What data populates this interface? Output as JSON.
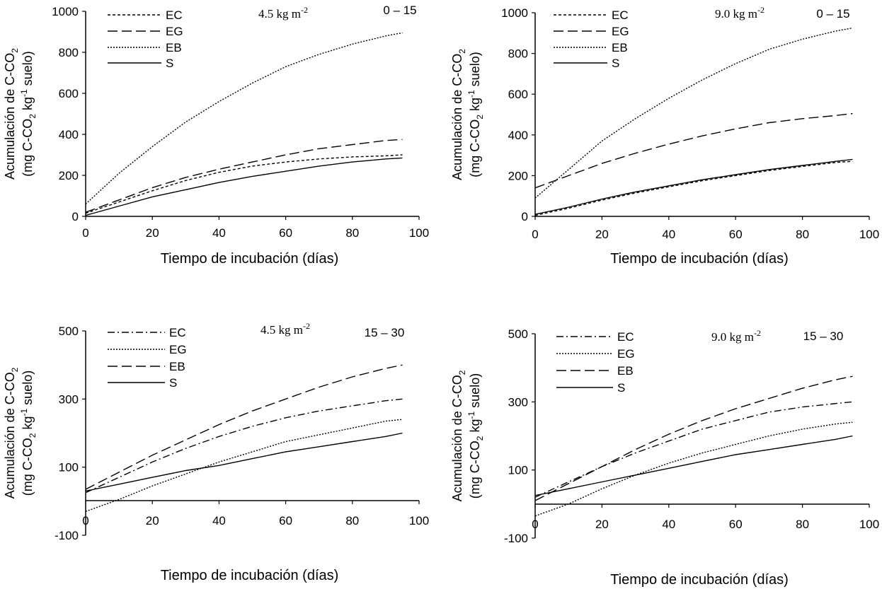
{
  "figure": {
    "panels_note": "four-panel figure",
    "background": "#ffffff",
    "line_color": "#000000"
  },
  "chart_data": [
    {
      "type": "line",
      "panel": "top-left",
      "annotation_dose": "4.5 kg m",
      "annotation_dose_exp": "-2",
      "annotation_depth": "0 – 15",
      "ylabel_line1": "Acumulación de C-CO",
      "ylabel_line1_sub": "2",
      "ylabel_line2_a": "(mg C-CO",
      "ylabel_line2_sub": "2",
      "ylabel_line2_b": " kg",
      "ylabel_line2_sup": "-1",
      "ylabel_line2_c": " suelo)",
      "xlabel": "Tiempo de incubación (días)",
      "xlim": [
        0,
        100
      ],
      "ylim": [
        0,
        1000
      ],
      "xticks": [
        0,
        20,
        40,
        60,
        80,
        100
      ],
      "yticks": [
        0,
        200,
        400,
        600,
        800,
        1000
      ],
      "legend_position": "top-left",
      "x": [
        0,
        10,
        20,
        30,
        40,
        50,
        60,
        70,
        80,
        90,
        95
      ],
      "series": [
        {
          "name": "EC",
          "style": "dashed-fine",
          "values": [
            15,
            70,
            125,
            175,
            215,
            245,
            265,
            280,
            290,
            295,
            300
          ]
        },
        {
          "name": "EG",
          "style": "dashed-long",
          "values": [
            20,
            80,
            140,
            190,
            230,
            265,
            300,
            330,
            350,
            370,
            375
          ]
        },
        {
          "name": "EB",
          "style": "dotted",
          "values": [
            60,
            210,
            340,
            460,
            560,
            650,
            730,
            790,
            840,
            880,
            895
          ]
        },
        {
          "name": "S",
          "style": "solid",
          "values": [
            5,
            50,
            95,
            130,
            165,
            195,
            220,
            245,
            265,
            280,
            285
          ]
        }
      ]
    },
    {
      "type": "line",
      "panel": "top-right",
      "annotation_dose": "9.0 kg m",
      "annotation_dose_exp": "-2",
      "annotation_depth": "0 – 15",
      "ylabel_line1": "Acumulación de C-CO",
      "ylabel_line1_sub": "2",
      "ylabel_line2_a": "(mg C-CO",
      "ylabel_line2_sub": "2",
      "ylabel_line2_b": " kg",
      "ylabel_line2_sup": "-1",
      "ylabel_line2_c": " suelo)",
      "xlabel": "Tiempo de incubación (días)",
      "xlim": [
        0,
        100
      ],
      "ylim": [
        0,
        1000
      ],
      "xticks": [
        0,
        20,
        40,
        60,
        80,
        100
      ],
      "yticks": [
        0,
        200,
        400,
        600,
        800,
        1000
      ],
      "legend_position": "top-left",
      "x": [
        0,
        10,
        20,
        30,
        40,
        50,
        60,
        70,
        80,
        90,
        95
      ],
      "series": [
        {
          "name": "EC",
          "style": "dashed-fine",
          "values": [
            5,
            40,
            80,
            115,
            145,
            175,
            200,
            225,
            245,
            265,
            270
          ]
        },
        {
          "name": "EG",
          "style": "dashed-long",
          "values": [
            140,
            200,
            260,
            310,
            355,
            395,
            430,
            460,
            480,
            495,
            505
          ]
        },
        {
          "name": "EB",
          "style": "dotted",
          "values": [
            90,
            230,
            370,
            480,
            580,
            670,
            750,
            820,
            870,
            910,
            925
          ]
        },
        {
          "name": "S",
          "style": "solid",
          "values": [
            10,
            45,
            85,
            120,
            150,
            180,
            205,
            230,
            250,
            270,
            280
          ]
        }
      ]
    },
    {
      "type": "line",
      "panel": "bottom-left",
      "annotation_dose": "4.5 kg m",
      "annotation_dose_exp": "-2",
      "annotation_depth": "15 – 30",
      "ylabel_line1": "Acumulación de C-CO",
      "ylabel_line1_sub": "2",
      "ylabel_line2_a": "(mg C-CO",
      "ylabel_line2_sub": "2",
      "ylabel_line2_b": " kg",
      "ylabel_line2_sup": "-1",
      "ylabel_line2_c": " suelo)",
      "xlabel": "Tiempo de incubación (días)",
      "xlim": [
        0,
        100
      ],
      "ylim": [
        -100,
        500
      ],
      "xticks": [
        0,
        20,
        40,
        60,
        80,
        100
      ],
      "yticks": [
        -100,
        100,
        300,
        500
      ],
      "legend_position": "top-left",
      "x": [
        0,
        10,
        20,
        30,
        40,
        50,
        60,
        70,
        80,
        90,
        95
      ],
      "series": [
        {
          "name": "EC",
          "style": "dash-dot",
          "values": [
            25,
            70,
            115,
            155,
            190,
            220,
            245,
            265,
            280,
            295,
            300
          ]
        },
        {
          "name": "EG",
          "style": "dotted",
          "values": [
            -30,
            5,
            45,
            80,
            115,
            145,
            175,
            195,
            215,
            235,
            240
          ]
        },
        {
          "name": "EB",
          "style": "dashed-long",
          "values": [
            35,
            85,
            135,
            180,
            225,
            265,
            300,
            335,
            365,
            390,
            400
          ]
        },
        {
          "name": "S",
          "style": "solid",
          "values": [
            30,
            50,
            70,
            90,
            105,
            125,
            145,
            160,
            175,
            190,
            200
          ]
        }
      ]
    },
    {
      "type": "line",
      "panel": "bottom-right",
      "annotation_dose": "9.0 kg m",
      "annotation_dose_exp": "-2",
      "annotation_depth": "15 – 30",
      "ylabel_line1": "Acumulación de C-CO",
      "ylabel_line1_sub": "2",
      "ylabel_line2_a": "(mg C-CO",
      "ylabel_line2_sub": "2",
      "ylabel_line2_b": " kg",
      "ylabel_line2_sup": "-1",
      "ylabel_line2_c": " suelo)",
      "xlabel": "Tiempo de incubación (días)",
      "xlim": [
        0,
        100
      ],
      "ylim": [
        -100,
        500
      ],
      "xticks": [
        0,
        20,
        40,
        60,
        80,
        100
      ],
      "yticks": [
        -100,
        100,
        300,
        500
      ],
      "legend_position": "top-left",
      "x": [
        0,
        10,
        20,
        30,
        40,
        50,
        60,
        70,
        80,
        90,
        95
      ],
      "series": [
        {
          "name": "EC",
          "style": "dash-dot",
          "values": [
            20,
            65,
            110,
            150,
            185,
            220,
            245,
            270,
            285,
            295,
            300
          ]
        },
        {
          "name": "EG",
          "style": "dotted",
          "values": [
            -35,
            0,
            45,
            85,
            120,
            150,
            175,
            200,
            220,
            235,
            240
          ]
        },
        {
          "name": "EB",
          "style": "dashed-long",
          "values": [
            10,
            60,
            110,
            160,
            205,
            245,
            280,
            310,
            340,
            365,
            375
          ]
        },
        {
          "name": "S",
          "style": "solid",
          "values": [
            25,
            45,
            65,
            85,
            105,
            125,
            145,
            160,
            175,
            190,
            200
          ]
        }
      ]
    }
  ]
}
